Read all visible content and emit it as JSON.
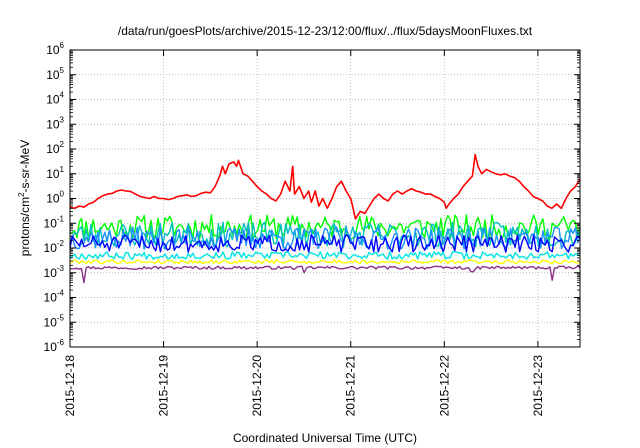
{
  "chart_data": {
    "type": "line",
    "title": "/data/run/goesPlots/archive/2015-12-23/12:00/flux/../flux/5daysMoonFluxes.txt",
    "xlabel": "Coordinated Universal Time (UTC)",
    "ylabel": {
      "pre": "protons/cm",
      "sup": "2",
      "post": "-s-sr-MeV"
    },
    "y_scale": "log",
    "ylim": [
      1e-06,
      1000000.0
    ],
    "y_ticks": [
      {
        "base": "10",
        "exp": "-6"
      },
      {
        "base": "10",
        "exp": "-5"
      },
      {
        "base": "10",
        "exp": "-4"
      },
      {
        "base": "10",
        "exp": "-3"
      },
      {
        "base": "10",
        "exp": "-2"
      },
      {
        "base": "10",
        "exp": "-1"
      },
      {
        "base": "10",
        "exp": "0"
      },
      {
        "base": "10",
        "exp": "1"
      },
      {
        "base": "10",
        "exp": "2"
      },
      {
        "base": "10",
        "exp": "3"
      },
      {
        "base": "10",
        "exp": "4"
      },
      {
        "base": "10",
        "exp": "5"
      },
      {
        "base": "10",
        "exp": "6"
      }
    ],
    "x_units": "days since 2015-12-18 00:00 UTC",
    "xlim": [
      0,
      5.45
    ],
    "x_ticks": [
      {
        "value": 0,
        "label": "2015-12-18"
      },
      {
        "value": 1,
        "label": "2015-12-19"
      },
      {
        "value": 2,
        "label": "2015-12-20"
      },
      {
        "value": 3,
        "label": "2015-12-21"
      },
      {
        "value": 4,
        "label": "2015-12-22"
      },
      {
        "value": 5,
        "label": "2015-12-23"
      }
    ],
    "grid": true,
    "series": [
      {
        "color": "#ff0000",
        "points": [
          [
            0,
            0.45
          ],
          [
            0.05,
            0.4
          ],
          [
            0.1,
            0.5
          ],
          [
            0.15,
            0.45
          ],
          [
            0.2,
            0.6
          ],
          [
            0.25,
            0.7
          ],
          [
            0.3,
            1.0
          ],
          [
            0.35,
            1.3
          ],
          [
            0.4,
            1.5
          ],
          [
            0.45,
            1.6
          ],
          [
            0.5,
            2.0
          ],
          [
            0.55,
            2.2
          ],
          [
            0.6,
            2.0
          ],
          [
            0.65,
            1.9
          ],
          [
            0.7,
            1.5
          ],
          [
            0.75,
            1.2
          ],
          [
            0.8,
            1.1
          ],
          [
            0.85,
            1.0
          ],
          [
            0.9,
            1.2
          ],
          [
            0.95,
            1.0
          ],
          [
            1.0,
            1.0
          ],
          [
            1.05,
            0.9
          ],
          [
            1.1,
            1.0
          ],
          [
            1.15,
            1.2
          ],
          [
            1.2,
            1.3
          ],
          [
            1.25,
            1.4
          ],
          [
            1.3,
            1.2
          ],
          [
            1.35,
            1.3
          ],
          [
            1.4,
            1.6
          ],
          [
            1.45,
            1.8
          ],
          [
            1.5,
            1.7
          ],
          [
            1.55,
            3.0
          ],
          [
            1.6,
            8.0
          ],
          [
            1.63,
            20
          ],
          [
            1.66,
            10
          ],
          [
            1.7,
            25
          ],
          [
            1.75,
            30
          ],
          [
            1.78,
            20
          ],
          [
            1.8,
            35
          ],
          [
            1.85,
            10
          ],
          [
            1.9,
            8.0
          ],
          [
            1.95,
            5.0
          ],
          [
            2.0,
            3.0
          ],
          [
            2.05,
            2.0
          ],
          [
            2.1,
            1.5
          ],
          [
            2.15,
            1.0
          ],
          [
            2.2,
            0.8
          ],
          [
            2.25,
            1.5
          ],
          [
            2.3,
            5.0
          ],
          [
            2.35,
            2.0
          ],
          [
            2.38,
            20
          ],
          [
            2.4,
            1.5
          ],
          [
            2.45,
            3.0
          ],
          [
            2.5,
            1.0
          ],
          [
            2.55,
            2.0
          ],
          [
            2.58,
            0.7
          ],
          [
            2.62,
            2.0
          ],
          [
            2.66,
            0.5
          ],
          [
            2.7,
            1.0
          ],
          [
            2.75,
            0.4
          ],
          [
            2.8,
            1.0
          ],
          [
            2.85,
            3.0
          ],
          [
            2.9,
            5.0
          ],
          [
            2.95,
            2.0
          ],
          [
            3.0,
            1.0
          ],
          [
            3.02,
            0.5
          ],
          [
            3.05,
            0.15
          ],
          [
            3.1,
            0.3
          ],
          [
            3.15,
            0.25
          ],
          [
            3.2,
            0.5
          ],
          [
            3.25,
            1.0
          ],
          [
            3.3,
            1.5
          ],
          [
            3.35,
            1.0
          ],
          [
            3.4,
            0.8
          ],
          [
            3.45,
            1.5
          ],
          [
            3.5,
            2.0
          ],
          [
            3.55,
            1.5
          ],
          [
            3.6,
            2.0
          ],
          [
            3.65,
            2.5
          ],
          [
            3.7,
            2.0
          ],
          [
            3.75,
            1.8
          ],
          [
            3.8,
            1.5
          ],
          [
            3.85,
            1.5
          ],
          [
            3.9,
            1.2
          ],
          [
            3.95,
            1.0
          ],
          [
            4.0,
            0.7
          ],
          [
            4.02,
            0.4
          ],
          [
            4.05,
            0.6
          ],
          [
            4.1,
            1.0
          ],
          [
            4.15,
            1.5
          ],
          [
            4.2,
            3.0
          ],
          [
            4.25,
            5.0
          ],
          [
            4.3,
            8.0
          ],
          [
            4.33,
            60
          ],
          [
            4.36,
            20
          ],
          [
            4.4,
            10
          ],
          [
            4.45,
            15
          ],
          [
            4.5,
            12
          ],
          [
            4.55,
            10
          ],
          [
            4.6,
            9.0
          ],
          [
            4.65,
            10
          ],
          [
            4.7,
            8.0
          ],
          [
            4.75,
            7.0
          ],
          [
            4.8,
            5.0
          ],
          [
            4.85,
            3.0
          ],
          [
            4.9,
            2.0
          ],
          [
            4.95,
            1.2
          ],
          [
            5.0,
            1.0
          ],
          [
            5.05,
            0.8
          ],
          [
            5.1,
            0.5
          ],
          [
            5.15,
            0.4
          ],
          [
            5.2,
            0.6
          ],
          [
            5.25,
            0.4
          ],
          [
            5.3,
            1.0
          ],
          [
            5.35,
            2.0
          ],
          [
            5.4,
            3.0
          ],
          [
            5.45,
            6.0
          ]
        ]
      },
      {
        "color": "#00ff00",
        "base": 0.07,
        "amp": 0.5,
        "seed": 11
      },
      {
        "color": "#00bfbf",
        "base": 0.035,
        "amp": 0.5,
        "seed": 23
      },
      {
        "color": "#1e90ff",
        "base": 0.025,
        "amp": 0.45,
        "seed": 37
      },
      {
        "color": "#0000ff",
        "base": 0.015,
        "amp": 0.35,
        "seed": 51
      },
      {
        "color": "#00e5e5",
        "base": 0.005,
        "amp": 0.15,
        "seed": 67
      },
      {
        "color": "#ffff00",
        "base": 0.0028,
        "amp": 0.08,
        "seed": 79
      },
      {
        "color": "#8b2f8b",
        "base": 0.0016,
        "amp": 0.06,
        "seed": 97,
        "dips": [
          [
            0.15,
            0.0004
          ],
          [
            5.15,
            0.0005
          ],
          [
            2.5,
            0.001
          ],
          [
            4.3,
            0.0011
          ]
        ]
      }
    ]
  }
}
